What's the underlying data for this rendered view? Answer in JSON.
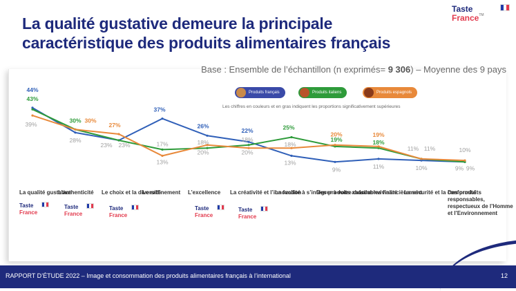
{
  "title": "La qualité gustative demeure la principale\ncaractéristique des produits alimentaires français",
  "brand": {
    "line1": "Taste",
    "line2": "France",
    "tm": "TM"
  },
  "base_note": {
    "prefix": "Base : Ensemble de l’échantillon (n exprimés= ",
    "n": "9 306",
    "suffix": ") – Moyenne des 9 pays"
  },
  "legend": [
    {
      "label": "Produits français",
      "color": "#3a4aa8"
    },
    {
      "label": "Produits italiens",
      "color": "#2e9b3a"
    },
    {
      "label": "Produits espagnols",
      "color": "#e8893a"
    }
  ],
  "significance_note": "Les chiffres en couleurs et en gras indiquent les proportions significativement supérieures",
  "chart_data": {
    "type": "line",
    "categories": [
      "La qualité gustative",
      "L’authenticité",
      "Le choix et la diversité",
      "Le raffinement",
      "L’excellence",
      "La créativité et l’innovation",
      "La facilité à s’intégrer à votre cuisine",
      "Des produits abordables financièrement",
      "La convivialité",
      "La sécurité et la conformité",
      "Des produits responsables, respectueux de l’Homme et l’Environnement"
    ],
    "series": [
      {
        "name": "Produits français",
        "color": "#2f5fb8",
        "values": [
          44,
          28,
          23,
          37,
          26,
          22,
          13,
          9,
          11,
          10,
          9
        ],
        "labels": [
          "44%",
          "28%",
          "23%",
          "37%",
          "26%",
          "22%",
          "13%",
          "9%",
          "11%",
          "10%",
          "9%"
        ],
        "bold": [
          true,
          false,
          false,
          true,
          true,
          true,
          false,
          false,
          false,
          false,
          false
        ]
      },
      {
        "name": "Produits italiens",
        "color": "#2e9b3a",
        "values": [
          43,
          30,
          23,
          17,
          18,
          20,
          25,
          19,
          18,
          11,
          9
        ],
        "labels": [
          "43%",
          "30%",
          "23%",
          "17%",
          "18%",
          "20%",
          "25%",
          "19%",
          "18%",
          "11%",
          "9%"
        ],
        "bold": [
          true,
          true,
          false,
          false,
          false,
          false,
          true,
          true,
          true,
          false,
          false
        ]
      },
      {
        "name": "Produits espagnols",
        "color": "#e8893a",
        "values": [
          39,
          30,
          27,
          13,
          20,
          18,
          18,
          20,
          19,
          11,
          10
        ],
        "labels": [
          "39%",
          "30%",
          "27%",
          "13%",
          "20%",
          "18%",
          "18%",
          "20%",
          "19%",
          "11%",
          "10%"
        ],
        "bold": [
          false,
          true,
          true,
          false,
          false,
          false,
          false,
          true,
          true,
          false,
          false
        ]
      }
    ],
    "muted_label_color": "#a0a0a0"
  },
  "category_labels": [
    "La qualité\ngustative",
    "L’authenticité",
    "Le choix et la\ndiversité",
    "Le raffinement",
    "L’excellence",
    "La créativité et\nl’innovation",
    "La facilité à\ns’intégrer à\nvotre cuisine",
    "Des produits\nabordables\nfinancièrement",
    "La convivialité",
    "La sécurité et la\nconformité",
    "Des produits\nresponsables,\nrespectueux de\nl’Homme et\nl’Environnement"
  ],
  "footer": {
    "text": "RAPPORT D’ÉTUDE 2022 – Image et consommation des produits alimentaires français à l’international",
    "page": "12"
  }
}
